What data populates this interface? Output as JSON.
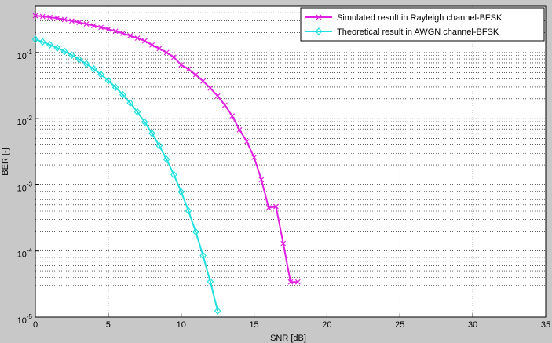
{
  "chart_data": {
    "type": "line",
    "xlabel": "SNR [dB]",
    "ylabel": "BER [-]",
    "log_y": true,
    "grid": true,
    "legend": "upper right",
    "xlim": [
      0,
      35
    ],
    "xticks": [
      0,
      5,
      10,
      15,
      20,
      25,
      30,
      35
    ],
    "ylim": [
      1e-05,
      0.5
    ],
    "yticks": [
      {
        "value": 1e-05,
        "label": "10^-5"
      },
      {
        "value": 0.0001,
        "label": "10^-4"
      },
      {
        "value": 0.001,
        "label": "10^-3"
      },
      {
        "value": 0.01,
        "label": "10^-2"
      },
      {
        "value": 0.1,
        "label": "10^-1"
      }
    ],
    "series": [
      {
        "name": "Simulated result in Rayleigh channel-BFSK",
        "color": "#e020e0",
        "marker": "x",
        "x": [
          0,
          0.5,
          1,
          1.5,
          2,
          2.5,
          3,
          3.5,
          4,
          4.5,
          5,
          5.5,
          6,
          6.5,
          7,
          7.5,
          8,
          8.5,
          9,
          9.5,
          10,
          10.5,
          11,
          11.5,
          12,
          12.5,
          13,
          13.5,
          14,
          14.5,
          15,
          15.5,
          16,
          16.5,
          17,
          17.5,
          18
        ],
        "values": [
          0.36,
          0.35,
          0.34,
          0.33,
          0.315,
          0.3,
          0.285,
          0.27,
          0.255,
          0.24,
          0.225,
          0.21,
          0.195,
          0.18,
          0.165,
          0.15,
          0.13,
          0.115,
          0.1,
          0.085,
          0.065,
          0.056,
          0.046,
          0.037,
          0.029,
          0.022,
          0.016,
          0.011,
          0.0068,
          0.0045,
          0.0026,
          0.0012,
          0.00045,
          0.00047,
          0.00013,
          3.4e-05,
          3.4e-05
        ]
      },
      {
        "name": "Theoretical result in AWGN channel-BFSK",
        "color": "#20e0e0",
        "marker": "diamond",
        "x": [
          0,
          0.5,
          1,
          1.5,
          2,
          2.5,
          3,
          3.5,
          4,
          4.5,
          5,
          5.5,
          6,
          6.5,
          7,
          7.5,
          8,
          8.5,
          9,
          9.5,
          10,
          10.5,
          11,
          11.5,
          12,
          12.5
        ],
        "values": [
          0.1587,
          0.1447,
          0.1309,
          0.1173,
          0.104,
          0.0912,
          0.0789,
          0.0673,
          0.0565,
          0.0466,
          0.0377,
          0.0298,
          0.023,
          0.0173,
          0.0126,
          0.00887,
          0.006,
          0.0039,
          0.00242,
          0.00142,
          0.000783,
          0.000404,
          0.000194,
          8.53e-05,
          3.43e-05,
          1.24e-05
        ]
      }
    ]
  }
}
